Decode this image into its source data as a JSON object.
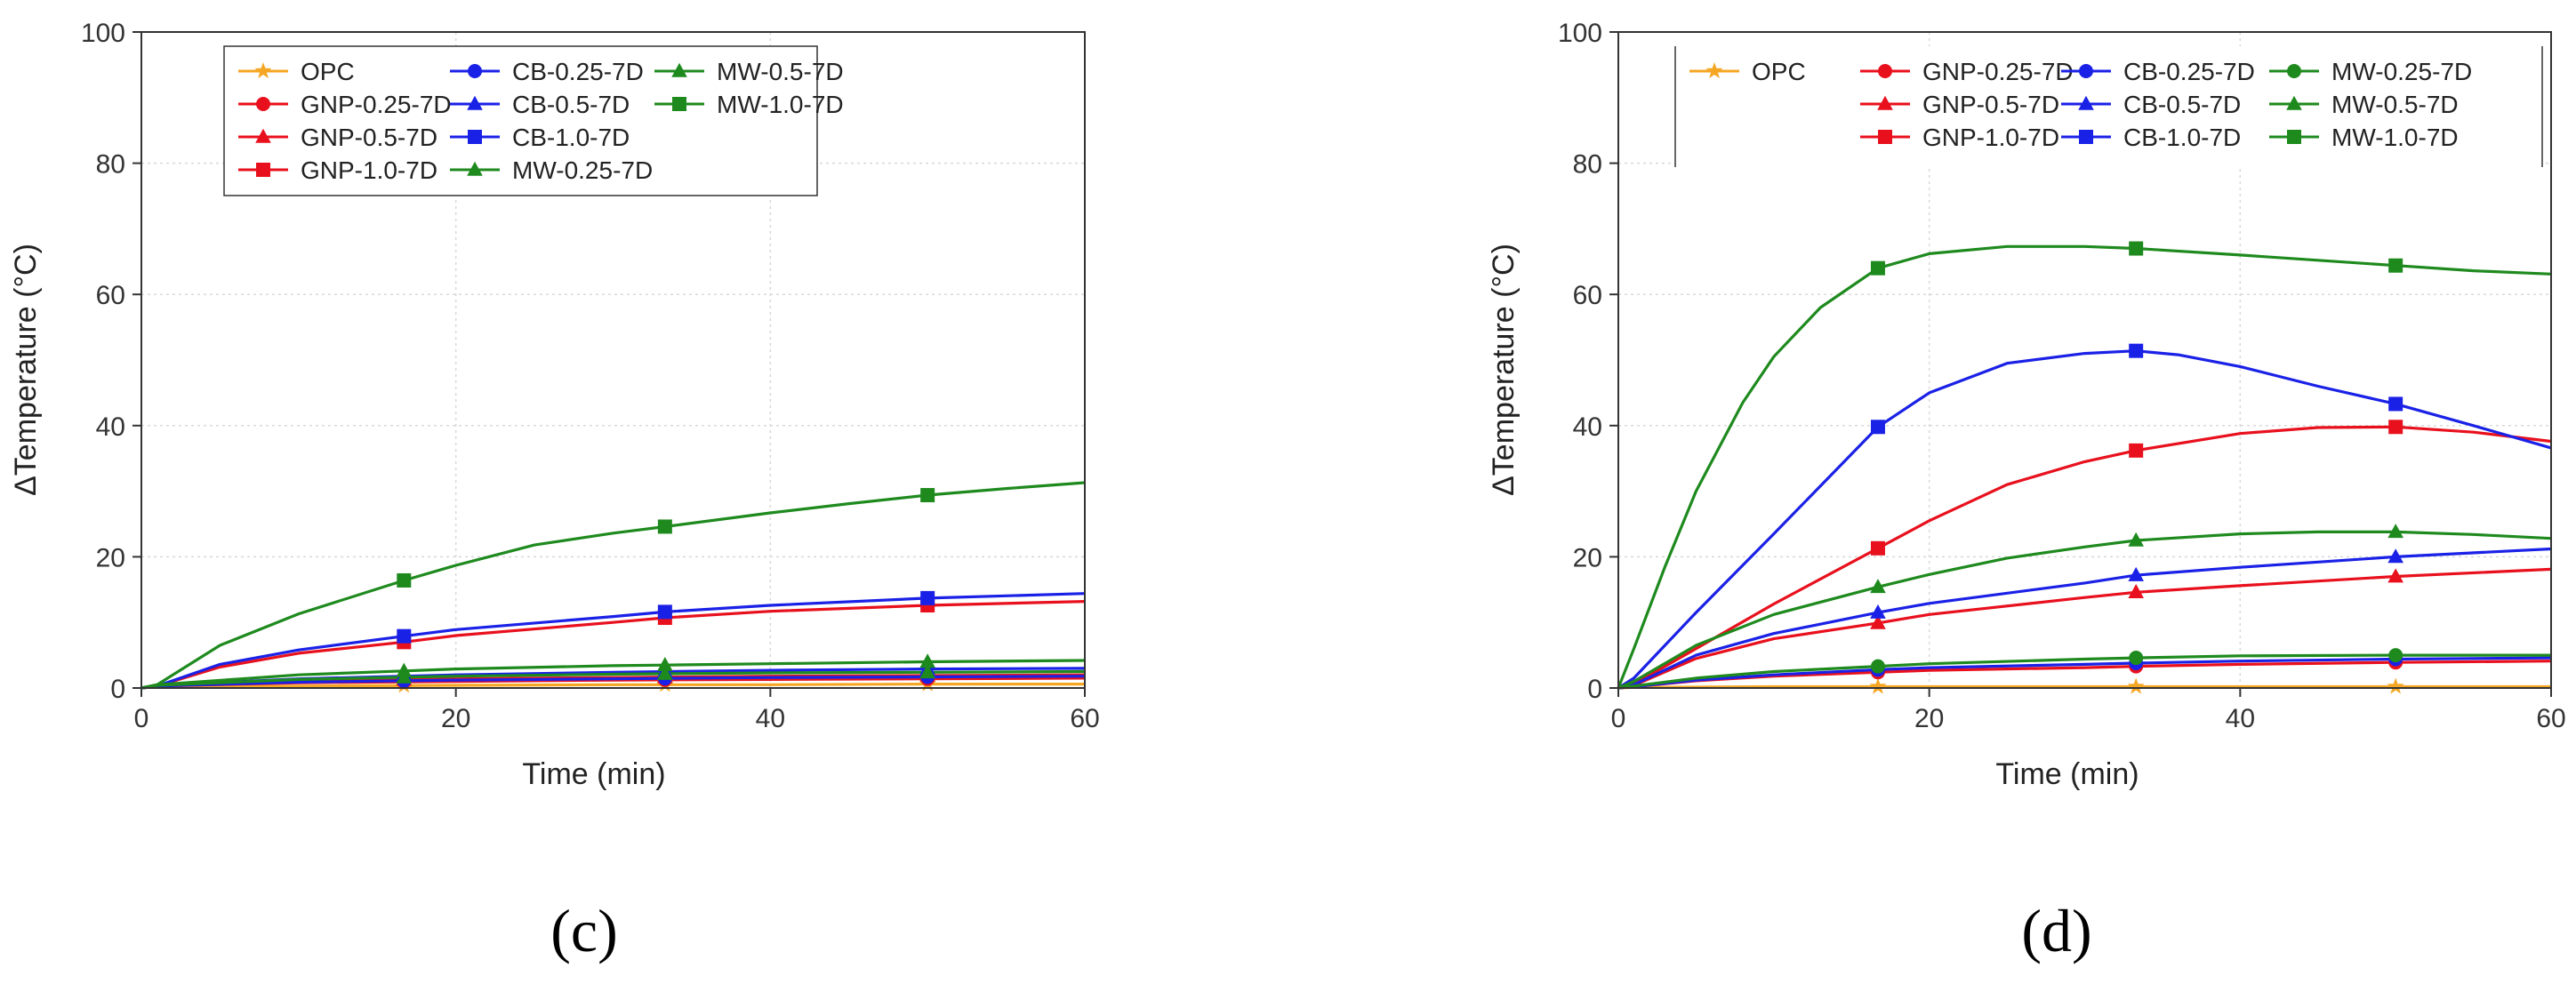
{
  "chart_data": [
    {
      "type": "line",
      "panel_label": "(c)",
      "xlabel": "Time (min)",
      "ylabel": "ΔTemperature (°C)",
      "xlim": [
        0,
        60
      ],
      "ylim": [
        0,
        100
      ],
      "xticks": [
        0,
        20,
        40,
        60
      ],
      "yticks": [
        0,
        20,
        40,
        60,
        80,
        100
      ],
      "grid": true,
      "legend_position": "top",
      "legend_columns": 3,
      "series": [
        {
          "name": "OPC",
          "color": "#f5a623",
          "marker": "star",
          "x": [
            0,
            1,
            10,
            20,
            30,
            40,
            50,
            60
          ],
          "y": [
            0,
            0.2,
            0.3,
            0.4,
            0.5,
            0.5,
            0.6,
            0.6
          ],
          "marker_x": [
            16.7,
            33.3,
            50
          ]
        },
        {
          "name": "GNP-0.25-7D",
          "color": "#e8101d",
          "marker": "circle",
          "x": [
            0,
            1,
            10,
            20,
            30,
            40,
            50,
            60
          ],
          "y": [
            0,
            0.3,
            0.8,
            1.0,
            1.2,
            1.3,
            1.4,
            1.5
          ],
          "marker_x": [
            16.7,
            33.3,
            50
          ]
        },
        {
          "name": "GNP-0.5-7D",
          "color": "#e8101d",
          "marker": "triangle",
          "x": [
            0,
            1,
            10,
            20,
            30,
            40,
            50,
            60
          ],
          "y": [
            0,
            0.4,
            1.0,
            1.4,
            1.6,
            1.8,
            1.9,
            2.0
          ],
          "marker_x": [
            16.7,
            33.3,
            50
          ]
        },
        {
          "name": "GNP-1.0-7D",
          "color": "#e8101d",
          "marker": "square",
          "x": [
            0,
            1,
            5,
            10,
            16.7,
            20,
            30,
            33.3,
            40,
            50,
            60
          ],
          "y": [
            0,
            0.3,
            3.2,
            5.3,
            7.0,
            8.0,
            10.0,
            10.7,
            11.7,
            12.6,
            13.2
          ],
          "marker_x": [
            16.7,
            33.3,
            50
          ]
        },
        {
          "name": "CB-0.25-7D",
          "color": "#1a21e6",
          "marker": "circle",
          "x": [
            0,
            1,
            10,
            20,
            30,
            40,
            50,
            60
          ],
          "y": [
            0,
            0.3,
            0.9,
            1.2,
            1.4,
            1.6,
            1.7,
            1.8
          ],
          "marker_x": [
            16.7,
            33.3,
            50
          ]
        },
        {
          "name": "CB-0.5-7D",
          "color": "#1a21e6",
          "marker": "triangle",
          "x": [
            0,
            1,
            10,
            20,
            30,
            40,
            50,
            60
          ],
          "y": [
            0,
            0.4,
            1.4,
            2.0,
            2.4,
            2.7,
            2.9,
            3.0
          ],
          "marker_x": [
            16.7,
            33.3,
            50
          ]
        },
        {
          "name": "CB-1.0-7D",
          "color": "#1a21e6",
          "marker": "square",
          "x": [
            0,
            1,
            5,
            10,
            16.7,
            20,
            30,
            33.3,
            40,
            50,
            60
          ],
          "y": [
            0,
            0.3,
            3.6,
            5.8,
            7.9,
            8.9,
            10.9,
            11.6,
            12.6,
            13.7,
            14.4
          ],
          "marker_x": [
            16.7,
            33.3,
            50
          ]
        },
        {
          "name": "MW-0.25-7D",
          "color": "#1e8a1e",
          "marker": "triangle",
          "x": [
            0,
            1,
            10,
            20,
            30,
            40,
            50,
            60
          ],
          "y": [
            0,
            0.4,
            1.3,
            1.8,
            2.1,
            2.3,
            2.4,
            2.5
          ],
          "marker_x": [
            16.7,
            33.3,
            50
          ]
        },
        {
          "name": "MW-0.5-7D",
          "color": "#1e8a1e",
          "marker": "triangle",
          "x": [
            0,
            1,
            10,
            16.7,
            20,
            30,
            33.3,
            40,
            50,
            60
          ],
          "y": [
            0,
            0.5,
            2.0,
            2.6,
            2.9,
            3.4,
            3.5,
            3.7,
            4.0,
            4.2
          ],
          "marker_x": [
            16.7,
            33.3,
            50
          ]
        },
        {
          "name": "MW-1.0-7D",
          "color": "#1e8a1e",
          "marker": "square",
          "x": [
            0,
            1,
            5,
            10,
            16.7,
            20,
            25,
            30,
            33.3,
            40,
            45,
            50,
            55,
            60
          ],
          "y": [
            0,
            0.5,
            6.5,
            11.3,
            16.4,
            18.7,
            21.8,
            23.6,
            24.6,
            26.7,
            28.1,
            29.4,
            30.4,
            31.3
          ],
          "marker_x": [
            16.7,
            33.3,
            50
          ]
        }
      ]
    },
    {
      "type": "line",
      "panel_label": "(d)",
      "xlabel": "Time (min)",
      "ylabel": "ΔTemperature (°C)",
      "xlim": [
        0,
        60
      ],
      "ylim": [
        0,
        100
      ],
      "xticks": [
        0,
        20,
        40,
        60
      ],
      "yticks": [
        0,
        20,
        40,
        60,
        80,
        100
      ],
      "grid": true,
      "legend_position": "top",
      "legend_columns": 4,
      "series": [
        {
          "name": "OPC",
          "color": "#f5a623",
          "marker": "star",
          "x": [
            0,
            1,
            10,
            20,
            30,
            40,
            50,
            60
          ],
          "y": [
            0,
            0.1,
            0.2,
            0.2,
            0.2,
            0.2,
            0.2,
            0.2
          ],
          "marker_x": [
            16.7,
            33.3,
            50
          ]
        },
        {
          "name": "GNP-0.25-7D",
          "color": "#e8101d",
          "marker": "circle",
          "x": [
            0,
            1,
            5,
            10,
            16.7,
            20,
            30,
            33.3,
            40,
            50,
            60
          ],
          "y": [
            0,
            0.2,
            1.1,
            1.8,
            2.4,
            2.7,
            3.1,
            3.3,
            3.6,
            3.9,
            4.1
          ],
          "marker_x": [
            16.7,
            33.3,
            50
          ]
        },
        {
          "name": "GNP-0.5-7D",
          "color": "#e8101d",
          "marker": "triangle",
          "x": [
            0,
            1,
            5,
            10,
            16.7,
            20,
            30,
            33.3,
            40,
            50,
            60
          ],
          "y": [
            0,
            0.4,
            4.5,
            7.5,
            9.9,
            11.2,
            13.8,
            14.6,
            15.6,
            17.0,
            18.1
          ],
          "marker_x": [
            16.7,
            33.3,
            50
          ]
        },
        {
          "name": "GNP-1.0-7D",
          "color": "#e8101d",
          "marker": "square",
          "x": [
            0,
            1,
            5,
            10,
            16.7,
            20,
            25,
            30,
            33.3,
            40,
            45,
            50,
            55,
            60
          ],
          "y": [
            0,
            0.6,
            6.0,
            12.8,
            21.3,
            25.5,
            31.0,
            34.5,
            36.2,
            38.8,
            39.7,
            39.8,
            39.0,
            37.6
          ],
          "marker_x": [
            16.7,
            33.3,
            50
          ]
        },
        {
          "name": "CB-0.25-7D",
          "color": "#1a21e6",
          "marker": "circle",
          "x": [
            0,
            1,
            5,
            10,
            16.7,
            20,
            30,
            33.3,
            40,
            50,
            60
          ],
          "y": [
            0,
            0.2,
            1.2,
            2.0,
            2.8,
            3.1,
            3.6,
            3.8,
            4.1,
            4.4,
            4.6
          ],
          "marker_x": [
            16.7,
            33.3,
            50
          ]
        },
        {
          "name": "CB-0.5-7D",
          "color": "#1a21e6",
          "marker": "triangle",
          "x": [
            0,
            1,
            5,
            10,
            16.7,
            20,
            30,
            33.3,
            40,
            50,
            60
          ],
          "y": [
            0,
            0.5,
            5.0,
            8.3,
            11.5,
            12.9,
            16.0,
            17.2,
            18.4,
            20.0,
            21.2
          ],
          "marker_x": [
            16.7,
            33.3,
            50
          ]
        },
        {
          "name": "CB-1.0-7D",
          "color": "#1a21e6",
          "marker": "square",
          "x": [
            0,
            1,
            5,
            10,
            16.7,
            20,
            25,
            30,
            33.3,
            36,
            40,
            45,
            50,
            55,
            60
          ],
          "y": [
            0,
            1.5,
            11.5,
            23.5,
            39.8,
            45.0,
            49.5,
            51.0,
            51.4,
            50.8,
            49.0,
            46.0,
            43.3,
            40.0,
            36.6
          ],
          "marker_x": [
            16.7,
            33.3,
            50
          ]
        },
        {
          "name": "MW-0.25-7D",
          "color": "#1e8a1e",
          "marker": "circle",
          "x": [
            0,
            1,
            5,
            10,
            16.7,
            20,
            30,
            33.3,
            40,
            50,
            60
          ],
          "y": [
            0,
            0.3,
            1.5,
            2.5,
            3.3,
            3.7,
            4.4,
            4.6,
            4.9,
            5.0,
            5.0
          ],
          "marker_x": [
            16.7,
            33.3,
            50
          ]
        },
        {
          "name": "MW-0.5-7D",
          "color": "#1e8a1e",
          "marker": "triangle",
          "x": [
            0,
            1,
            5,
            10,
            16.7,
            20,
            25,
            30,
            33.3,
            40,
            45,
            50,
            55,
            60
          ],
          "y": [
            0,
            1.0,
            6.5,
            11.2,
            15.4,
            17.3,
            19.8,
            21.5,
            22.5,
            23.5,
            23.8,
            23.8,
            23.4,
            22.8
          ],
          "marker_x": [
            16.7,
            33.3,
            50
          ]
        },
        {
          "name": "MW-1.0-7D",
          "color": "#1e8a1e",
          "marker": "square",
          "x": [
            0,
            1,
            3,
            5,
            8,
            10,
            13,
            16.7,
            20,
            25,
            30,
            33.3,
            40,
            45,
            50,
            55,
            60
          ],
          "y": [
            0,
            6.0,
            18.5,
            30.0,
            43.5,
            50.5,
            58.0,
            64.0,
            66.2,
            67.3,
            67.3,
            67.0,
            66.0,
            65.2,
            64.4,
            63.6,
            63.1
          ],
          "marker_x": [
            16.7,
            33.3,
            50
          ]
        }
      ]
    }
  ]
}
